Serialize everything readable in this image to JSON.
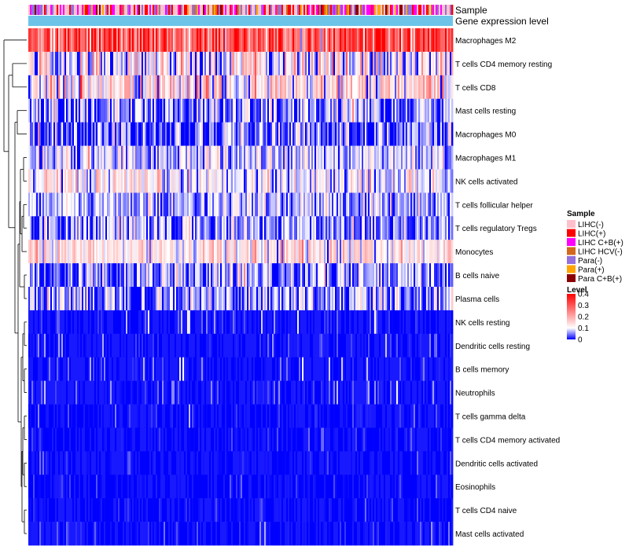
{
  "chart_data": {
    "type": "heatmap",
    "annotation_rows": [
      "Sample",
      "Gene expression level"
    ],
    "rows": [
      {
        "name": "Macrophages M2",
        "mean": 0.3,
        "sd": 0.09
      },
      {
        "name": "T cells CD4 memory resting",
        "mean": 0.11,
        "sd": 0.08
      },
      {
        "name": "T cells CD8",
        "mean": 0.13,
        "sd": 0.07
      },
      {
        "name": "Mast cells resting",
        "mean": 0.05,
        "sd": 0.06
      },
      {
        "name": "Macrophages M0",
        "mean": 0.04,
        "sd": 0.06
      },
      {
        "name": "Macrophages M1",
        "mean": 0.08,
        "sd": 0.05
      },
      {
        "name": "NK cells activated",
        "mean": 0.1,
        "sd": 0.05
      },
      {
        "name": "T cells follicular helper",
        "mean": 0.07,
        "sd": 0.04
      },
      {
        "name": "T cells regulatory  Tregs",
        "mean": 0.06,
        "sd": 0.05
      },
      {
        "name": "Monocytes",
        "mean": 0.13,
        "sd": 0.05
      },
      {
        "name": "B cells naive",
        "mean": 0.05,
        "sd": 0.05
      },
      {
        "name": "Plasma cells",
        "mean": 0.06,
        "sd": 0.06
      },
      {
        "name": "NK cells resting",
        "mean": 0.015,
        "sd": 0.04
      },
      {
        "name": "Dendritic cells resting",
        "mean": 0.02,
        "sd": 0.035
      },
      {
        "name": "B cells memory",
        "mean": 0.02,
        "sd": 0.035
      },
      {
        "name": "Neutrophils",
        "mean": 0.02,
        "sd": 0.03
      },
      {
        "name": "T cells gamma delta",
        "mean": 0.005,
        "sd": 0.025
      },
      {
        "name": "T cells CD4 memory activated",
        "mean": 0.004,
        "sd": 0.02
      },
      {
        "name": "Dendritic cells activated",
        "mean": 0.006,
        "sd": 0.02
      },
      {
        "name": "Eosinophils",
        "mean": 0.003,
        "sd": 0.02
      },
      {
        "name": "T cells CD4 naive",
        "mean": 0.004,
        "sd": 0.02
      },
      {
        "name": "Mast cells activated",
        "mean": 0.008,
        "sd": 0.03
      }
    ],
    "legend": {
      "sample_title": "Sample",
      "samples": [
        {
          "label": "LIHC(-)",
          "color": "#FFC0CB"
        },
        {
          "label": "LIHC(+)",
          "color": "#FF0000"
        },
        {
          "label": "LIHC C+B(+)",
          "color": "#FF00FF"
        },
        {
          "label": "LIHC HCV(-)",
          "color": "#D2691E"
        },
        {
          "label": "Para(-)",
          "color": "#9370DB"
        },
        {
          "label": "Para(+)",
          "color": "#FFA500"
        },
        {
          "label": "Para C+B(+)",
          "color": "#8B0000"
        }
      ],
      "level_title": "Level",
      "level_ticks": [
        "0.4",
        "0.3",
        "0.2",
        "0.1",
        "0"
      ],
      "level_values": [
        0.4,
        0.3,
        0.2,
        0.1,
        0
      ],
      "color_low": "#0000FF",
      "color_mid": "#FFFFFF",
      "color_high": "#FF0000",
      "range": [
        0,
        0.4
      ]
    },
    "expression_level_color": "#6CC4E8",
    "xlabel": "",
    "ylabel": ""
  }
}
